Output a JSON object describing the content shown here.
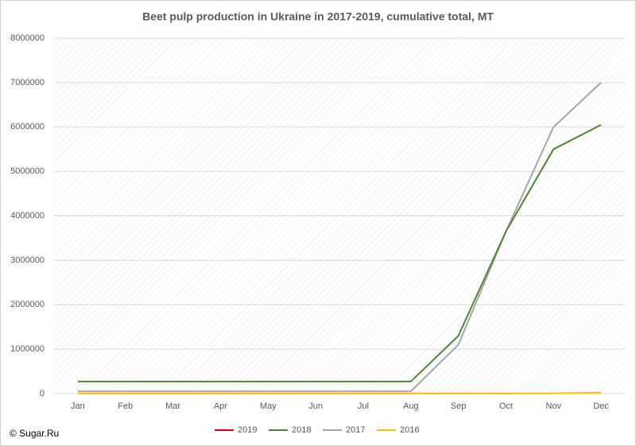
{
  "chart_data": {
    "type": "line",
    "title": "Beet pulp production in Ukraine in 2017-2019, cumulative total, MT",
    "source": "© Sugar.Ru",
    "categories": [
      "Jan",
      "Feb",
      "Mar",
      "Apr",
      "May",
      "Jun",
      "Jul",
      "Aug",
      "Sep",
      "Oct",
      "Nov",
      "Dec"
    ],
    "series": [
      {
        "name": "2019",
        "color": "#e00000",
        "values": [
          null,
          null,
          null,
          null,
          null,
          null,
          null,
          null,
          null,
          null,
          null,
          null
        ]
      },
      {
        "name": "2018",
        "color": "#548235",
        "values": [
          270000,
          270000,
          270000,
          270000,
          270000,
          270000,
          270000,
          270000,
          1300000,
          3650000,
          5500000,
          6050000
        ]
      },
      {
        "name": "2017",
        "color": "#a5a5a5",
        "values": [
          50000,
          50000,
          50000,
          50000,
          50000,
          50000,
          50000,
          50000,
          1100000,
          3650000,
          6000000,
          7000000
        ]
      },
      {
        "name": "2016",
        "color": "#ffc000",
        "values": [
          0,
          0,
          0,
          0,
          0,
          0,
          0,
          0,
          0,
          0,
          5000,
          20000
        ]
      }
    ],
    "ylim": [
      0,
      8000000
    ],
    "yticks": [
      0,
      1000000,
      2000000,
      3000000,
      4000000,
      5000000,
      6000000,
      7000000,
      8000000
    ],
    "grid": true
  }
}
